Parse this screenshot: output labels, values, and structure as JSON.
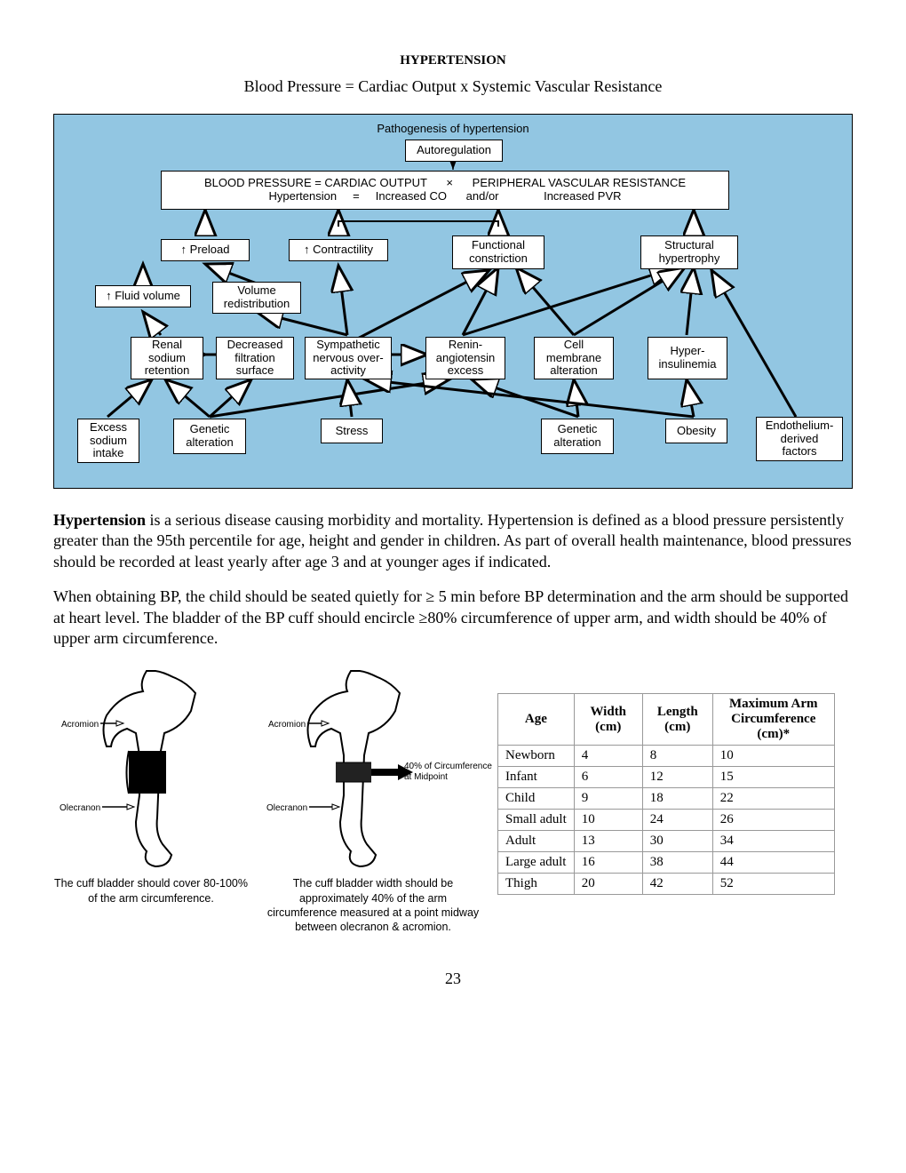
{
  "header": {
    "title": "HYPERTENSION",
    "equation": "Blood Pressure = Cardiac Output x Systemic Vascular Resistance"
  },
  "diagram": {
    "bg_color": "#92c6e2",
    "top_label": "Pathogenesis of hypertension",
    "autoregulation": "Autoregulation",
    "main_line1": "BLOOD PRESSURE = CARDIAC OUTPUT      ×      PERIPHERAL VASCULAR RESISTANCE",
    "main_line2": "Hypertension     =     Increased CO      and/or              Increased PVR",
    "row2": {
      "preload": "↑ Preload",
      "contractility": "↑ Contractility",
      "functional": "Functional constriction",
      "structural": "Structural hypertrophy"
    },
    "row3": {
      "fluid": "↑ Fluid volume",
      "volred": "Volume redistribution"
    },
    "row4": {
      "renal": "Renal sodium retention",
      "filt": "Decreased filtration surface",
      "symp": "Sympathetic nervous over-activity",
      "renin": "Renin-angiotensin excess",
      "cell": "Cell membrane alteration",
      "hyper": "Hyper-insulinemia"
    },
    "row5": {
      "excess": "Excess sodium intake",
      "gen1": "Genetic alteration",
      "stress": "Stress",
      "gen2": "Genetic alteration",
      "obesity": "Obesity",
      "endo": "Endothelium-derived factors"
    }
  },
  "body": {
    "p1_bold": "Hypertension",
    "p1_rest": " is a serious disease causing morbidity and mortality. Hypertension is defined as a blood pressure persistently greater than the 95th percentile for age, height and gender in children. As part of overall health maintenance, blood pressures should be recorded at least yearly after age 3 and at younger ages if indicated.",
    "p2": "When obtaining BP, the child should be seated quietly for ≥ 5 min before BP determination and the arm should be supported at heart level. The bladder of the BP cuff should encircle ≥80% circumference of upper arm, and width should be 40% of upper arm circumference."
  },
  "arm_labels": {
    "acromion": "Acromion",
    "olecranon": "Olecranon",
    "forty": "40% of Circumference at Midpoint"
  },
  "captions": {
    "c1": "The cuff bladder should cover 80-100% of the arm circumference.",
    "c2": "The cuff bladder width should be approximately 40% of the arm circumference measured at a point midway between olecranon & acromion."
  },
  "table": {
    "headers": [
      "Age",
      "Width (cm)",
      "Length (cm)",
      "Maximum Arm Circumference (cm)*"
    ],
    "rows": [
      [
        "Newborn",
        "4",
        "8",
        "10"
      ],
      [
        "Infant",
        "6",
        "12",
        "15"
      ],
      [
        "Child",
        "9",
        "18",
        "22"
      ],
      [
        "Small adult",
        "10",
        "24",
        "26"
      ],
      [
        "Adult",
        "13",
        "30",
        "34"
      ],
      [
        "Large adult",
        "16",
        "38",
        "44"
      ],
      [
        "Thigh",
        "20",
        "42",
        "52"
      ]
    ]
  },
  "page_number": "23"
}
